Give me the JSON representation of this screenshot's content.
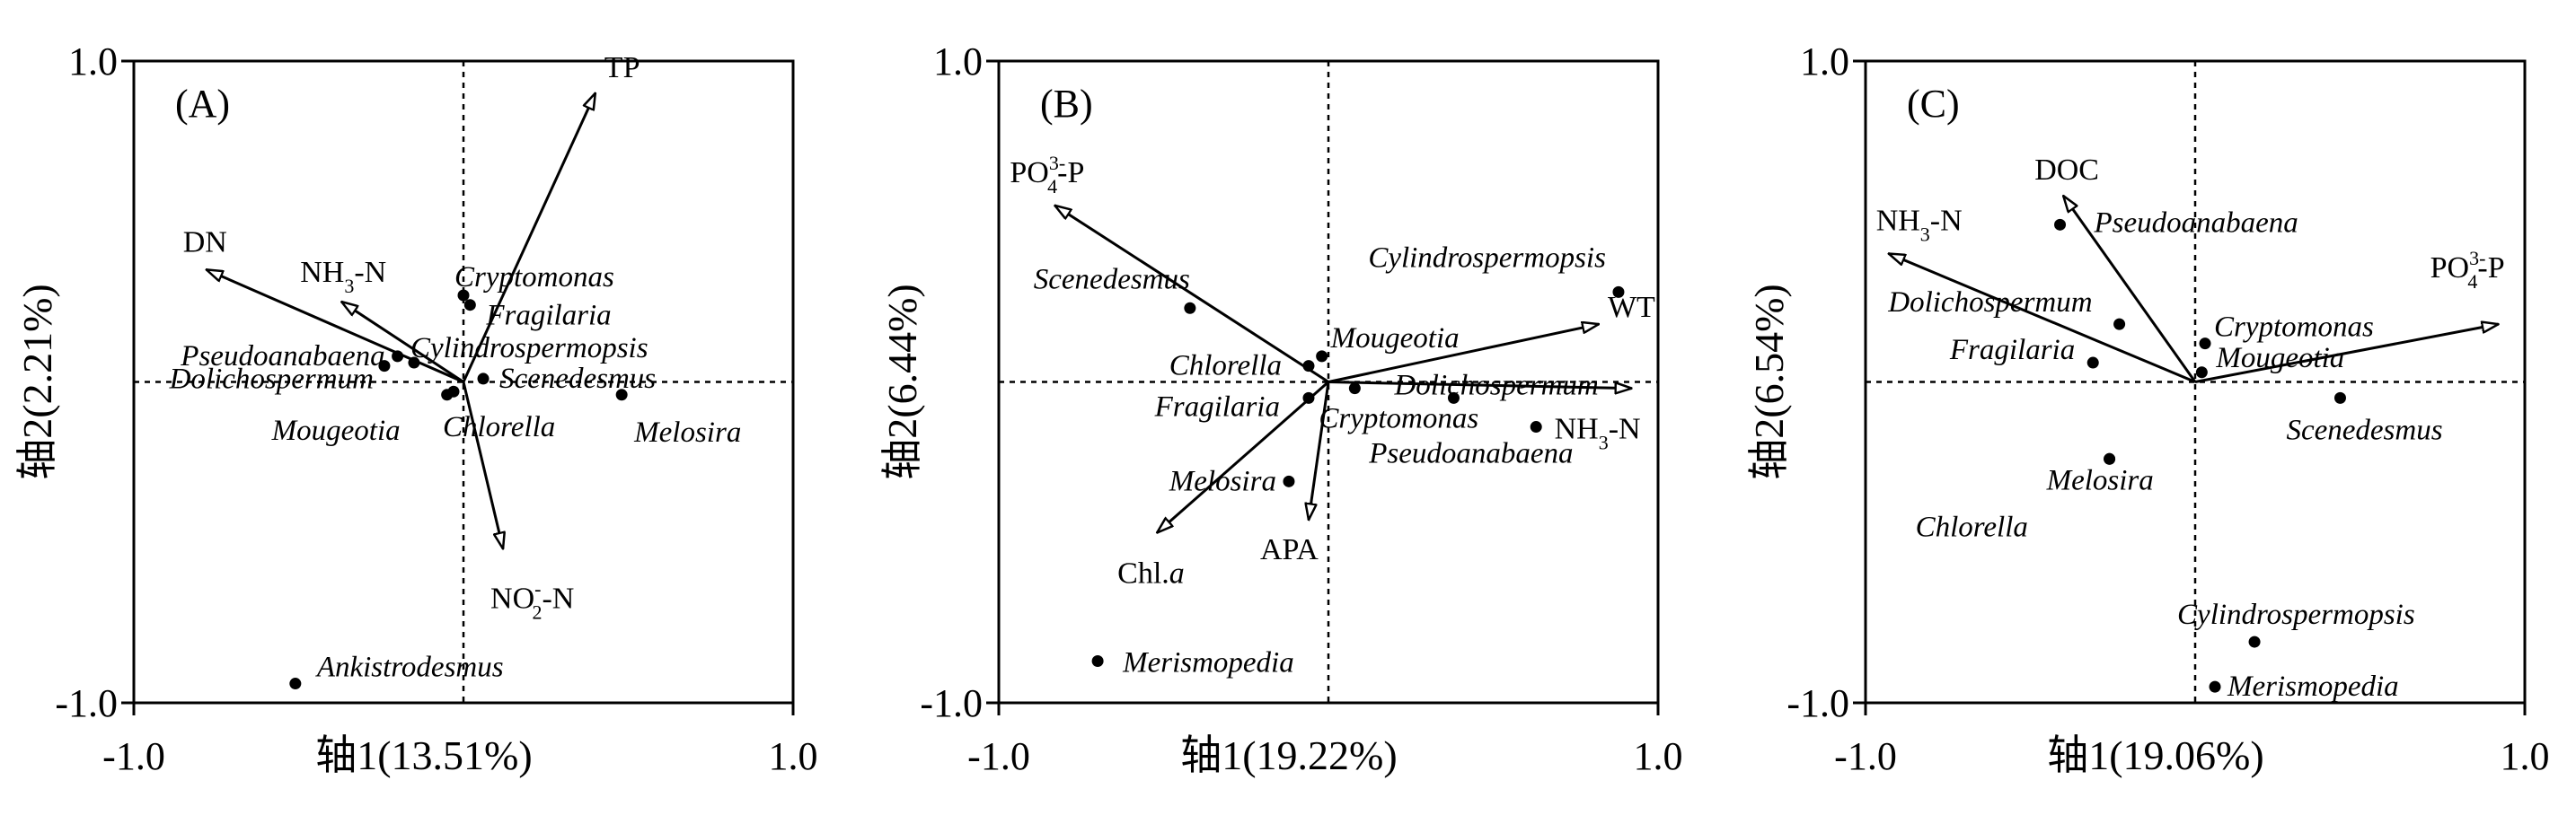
{
  "chart_data": [
    {
      "type": "scatter",
      "panel_label": "(A)",
      "xlabel": "轴1(13.51%)",
      "ylabel": "轴2(2.21%)",
      "xlim": [
        -1.0,
        1.0
      ],
      "ylim": [
        -1.0,
        1.0
      ],
      "x_ticks": [
        "-1.0",
        "1.0"
      ],
      "y_ticks": [
        "1.0",
        "-1.0"
      ],
      "vectors": [
        {
          "name": "TP",
          "sup": "",
          "sub": "",
          "x": 0.4,
          "y": 0.9
        },
        {
          "name": "DN",
          "sup": "",
          "sub": "",
          "x": -0.78,
          "y": 0.35
        },
        {
          "name": "NH3-N",
          "sup": "",
          "sub": "3",
          "x": -0.37,
          "y": 0.25
        },
        {
          "name": "NO2--N",
          "sup": "-",
          "sub": "2",
          "x": 0.12,
          "y": -0.52
        }
      ],
      "species": [
        {
          "name": "Cryptomonas",
          "x": 0.0,
          "y": 0.27
        },
        {
          "name": "Fragilaria",
          "x": 0.02,
          "y": 0.24
        },
        {
          "name": "Cylindrospermopsis",
          "x": -0.15,
          "y": 0.06
        },
        {
          "name": "Pseudoanabaena",
          "x": -0.2,
          "y": 0.08
        },
        {
          "name": "Dolichospermum",
          "x": -0.24,
          "y": 0.05
        },
        {
          "name": "Scenedesmus",
          "x": 0.06,
          "y": 0.01
        },
        {
          "name": "Mougeotia",
          "x": -0.05,
          "y": -0.04
        },
        {
          "name": "Chlorella",
          "x": -0.03,
          "y": -0.03
        },
        {
          "name": "Melosira",
          "x": 0.48,
          "y": -0.04
        },
        {
          "name": "Ankistrodesmus",
          "x": -0.51,
          "y": -0.94
        }
      ]
    },
    {
      "type": "scatter",
      "panel_label": "(B)",
      "xlabel": "轴1(19.22%)",
      "ylabel": "轴2(6.44%)",
      "xlim": [
        -1.0,
        1.0
      ],
      "ylim": [
        -1.0,
        1.0
      ],
      "x_ticks": [
        "-1.0",
        "1.0"
      ],
      "y_ticks": [
        "1.0",
        "-1.0"
      ],
      "vectors": [
        {
          "name": "PO43--P",
          "sup": "3-",
          "sub": "4",
          "x": -0.83,
          "y": 0.55
        },
        {
          "name": "WT",
          "sup": "",
          "sub": "",
          "x": 0.82,
          "y": 0.18
        },
        {
          "name": "NH3-N",
          "sup": "",
          "sub": "3",
          "x": 0.92,
          "y": -0.02
        },
        {
          "name": "Chl.a",
          "sup": "",
          "sub": "",
          "x": -0.52,
          "y": -0.47
        },
        {
          "name": "APA",
          "sup": "",
          "sub": "",
          "x": -0.06,
          "y": -0.43
        }
      ],
      "species": [
        {
          "name": "Cylindrospermopsis",
          "x": 0.88,
          "y": 0.28
        },
        {
          "name": "Scenedesmus",
          "x": -0.42,
          "y": 0.23
        },
        {
          "name": "Mougeotia",
          "x": -0.02,
          "y": 0.08
        },
        {
          "name": "Chlorella",
          "x": -0.06,
          "y": 0.05
        },
        {
          "name": "Fragilaria",
          "x": -0.06,
          "y": -0.05
        },
        {
          "name": "Cryptomonas",
          "x": 0.08,
          "y": -0.02
        },
        {
          "name": "Dolichospermum",
          "x": 0.38,
          "y": -0.05
        },
        {
          "name": "Pseudoanabaena",
          "x": 0.63,
          "y": -0.14
        },
        {
          "name": "Melosira",
          "x": -0.12,
          "y": -0.31
        },
        {
          "name": "Merismopedia",
          "x": -0.7,
          "y": -0.87
        }
      ]
    },
    {
      "type": "scatter",
      "panel_label": "(C)",
      "xlabel": "轴1(19.06%)",
      "ylabel": "轴2(6.54%)",
      "xlim": [
        -1.0,
        1.0
      ],
      "ylim": [
        -1.0,
        1.0
      ],
      "x_ticks": [
        "-1.0",
        "1.0"
      ],
      "y_ticks": [
        "1.0",
        "-1.0"
      ],
      "vectors": [
        {
          "name": "DOC",
          "sup": "",
          "sub": "",
          "x": -0.4,
          "y": 0.58
        },
        {
          "name": "NH3-N",
          "sup": "",
          "sub": "3",
          "x": -0.93,
          "y": 0.4
        },
        {
          "name": "PO43--P",
          "sup": "3-",
          "sub": "4",
          "x": 0.92,
          "y": 0.18
        }
      ],
      "species": [
        {
          "name": "Pseudoanabaena",
          "x": -0.41,
          "y": 0.49
        },
        {
          "name": "Dolichospermum",
          "x": -0.23,
          "y": 0.18
        },
        {
          "name": "Cryptomonas",
          "x": 0.03,
          "y": 0.12
        },
        {
          "name": "Mougeotia",
          "x": 0.02,
          "y": 0.03
        },
        {
          "name": "Fragilaria",
          "x": -0.31,
          "y": 0.06
        },
        {
          "name": "Chlorella",
          "x": -0.26,
          "y": -0.24
        },
        {
          "name": "Scenedesmus",
          "x": 0.44,
          "y": -0.05
        },
        {
          "name": "Melosira",
          "x": -0.26,
          "y": -0.24
        },
        {
          "name": "Cylindrospermopsis",
          "x": 0.18,
          "y": -0.81
        },
        {
          "name": "Merismopedia",
          "x": 0.06,
          "y": -0.95
        }
      ]
    }
  ]
}
